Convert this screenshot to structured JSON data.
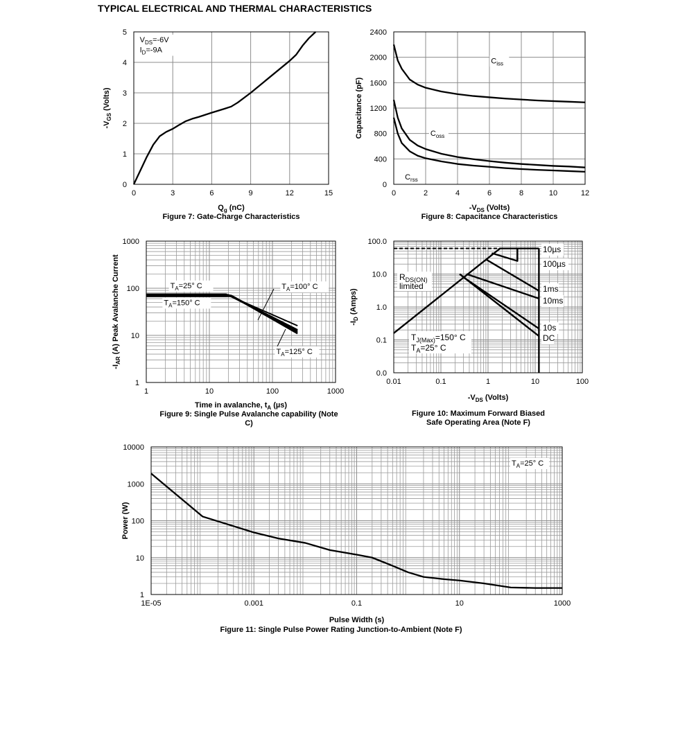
{
  "page": {
    "title": "TYPICAL ELECTRICAL AND THERMAL CHARACTERISTICS"
  },
  "chart_data": [
    {
      "id": "fig7",
      "type": "line",
      "title": "Figure 7: Gate-Charge Characteristics",
      "xlabel": {
        "main": "Q",
        "sub": "g",
        "after": " (nC)"
      },
      "ylabel": {
        "main": "-V",
        "sub": "GS",
        "after": " (Volts)"
      },
      "xlim": [
        0,
        15
      ],
      "ylim": [
        0,
        5
      ],
      "xticks": [
        0,
        3,
        6,
        9,
        12,
        15
      ],
      "yticks": [
        0,
        1,
        2,
        3,
        4,
        5
      ],
      "grid": true,
      "annotations": [
        {
          "main": "V",
          "sub": "DS",
          "after": "=-6V",
          "x": 0.3,
          "y": 4.75
        },
        {
          "main": "I",
          "sub": "D",
          "after": "=-9A",
          "x": 0.3,
          "y": 4.42
        }
      ],
      "series": [
        {
          "x": [
            0,
            0.5,
            1,
            1.5,
            2,
            2.5,
            3,
            3.5,
            4,
            4.5,
            5,
            6,
            7,
            7.5,
            8,
            9,
            10,
            11,
            12,
            12.5,
            13,
            13.5,
            14
          ],
          "y": [
            0,
            0.45,
            0.9,
            1.3,
            1.58,
            1.72,
            1.82,
            1.95,
            2.07,
            2.15,
            2.21,
            2.35,
            2.48,
            2.55,
            2.68,
            3.0,
            3.35,
            3.7,
            4.05,
            4.25,
            4.55,
            4.8,
            5.0
          ]
        }
      ]
    },
    {
      "id": "fig8",
      "type": "line",
      "title": "Figure 8: Capacitance Characteristics",
      "xlabel": {
        "main": "-V",
        "sub": "DS",
        "after": " (Volts)"
      },
      "ylabel": {
        "main": "Capacitance (pF)",
        "sub": "",
        "after": ""
      },
      "xlim": [
        0,
        12
      ],
      "ylim": [
        0,
        2400
      ],
      "xticks": [
        0,
        2,
        4,
        6,
        8,
        10,
        12
      ],
      "yticks": [
        0,
        400,
        800,
        1200,
        1600,
        2000,
        2400
      ],
      "grid": true,
      "series": [
        {
          "name": {
            "main": "C",
            "sub": "iss"
          },
          "label_at": [
            6.1,
            1950
          ],
          "x": [
            0,
            0.25,
            0.5,
            1,
            1.5,
            2,
            3,
            4,
            5,
            6,
            7,
            8,
            9,
            10,
            11,
            12
          ],
          "y": [
            2200,
            1950,
            1820,
            1650,
            1570,
            1520,
            1460,
            1420,
            1390,
            1370,
            1350,
            1335,
            1320,
            1310,
            1300,
            1290
          ]
        },
        {
          "name": {
            "main": "C",
            "sub": "oss"
          },
          "label_at": [
            2.3,
            810
          ],
          "x": [
            0,
            0.25,
            0.5,
            1,
            1.5,
            2,
            3,
            4,
            5,
            6,
            7,
            8,
            9,
            10,
            11,
            12
          ],
          "y": [
            1330,
            1050,
            880,
            700,
            610,
            555,
            480,
            430,
            395,
            365,
            340,
            320,
            305,
            290,
            280,
            265
          ]
        },
        {
          "name": {
            "main": "C",
            "sub": "rss"
          },
          "label_at": [
            0.7,
            120
          ],
          "x": [
            0,
            0.25,
            0.5,
            1,
            1.5,
            2,
            3,
            4,
            5,
            6,
            7,
            8,
            9,
            10,
            11,
            12
          ],
          "y": [
            1050,
            800,
            650,
            520,
            450,
            410,
            360,
            320,
            295,
            275,
            255,
            240,
            228,
            218,
            208,
            198
          ]
        }
      ]
    },
    {
      "id": "fig9",
      "type": "line",
      "title": "Figure 9: Single Pulse Avalanche capability      (Note C)",
      "xlabel": {
        "main": "Time in avalanche, t",
        "sub": "A",
        "after": " (µs)"
      },
      "ylabel": {
        "main": "-I",
        "sub": "AR",
        "after": " (A) Peak Avalanche Current"
      },
      "xscale": "log",
      "yscale": "log",
      "xlim": [
        1,
        1000
      ],
      "ylim": [
        1,
        1000
      ],
      "xticks": [
        1,
        10,
        100,
        1000
      ],
      "yticks": [
        1,
        10,
        100,
        1000
      ],
      "grid": true,
      "labels": [
        {
          "main": "T",
          "sub": "A",
          "after": "=25° C",
          "x": 2.4,
          "y": 115
        },
        {
          "main": "T",
          "sub": "A",
          "after": "=150° C",
          "x": 1.9,
          "y": 50
        },
        {
          "main": "T",
          "sub": "A",
          "after": "=100° C",
          "x": 140,
          "y": 110
        },
        {
          "main": "T",
          "sub": "A",
          "after": "=125° C",
          "x": 115,
          "y": 4.6
        }
      ],
      "series": [
        {
          "name": "TA=25° C",
          "x": [
            1,
            18,
            250
          ],
          "y": [
            75,
            75,
            16
          ]
        },
        {
          "name": "TA=100° C",
          "x": [
            1,
            20,
            250
          ],
          "y": [
            72,
            72,
            13
          ]
        },
        {
          "name": "TA=125° C",
          "x": [
            1,
            22,
            250
          ],
          "y": [
            70,
            70,
            12
          ]
        },
        {
          "name": "TA=150° C",
          "x": [
            1,
            23,
            250
          ],
          "y": [
            68,
            68,
            11
          ]
        }
      ]
    },
    {
      "id": "fig10",
      "type": "line",
      "title": "Figure 10: Maximum Forward Biased Safe Operating Area (Note F)",
      "xlabel": {
        "main": "-V",
        "sub": "DS",
        "after": " (Volts)"
      },
      "ylabel": {
        "main": "-I",
        "sub": "D",
        "after": " (Amps)"
      },
      "xscale": "log",
      "yscale": "log",
      "xlim": [
        0.01,
        100
      ],
      "ylim": [
        0.01,
        100
      ],
      "xticks": [
        0.01,
        0.1,
        1,
        10,
        100
      ],
      "xtick_labels": [
        "0.01",
        "0.1",
        "1",
        "10",
        "100"
      ],
      "yticks": [
        0.01,
        0.1,
        1,
        10,
        100
      ],
      "ytick_labels": [
        "0.0",
        "0.1",
        "1.0",
        "10.0",
        "100.0"
      ],
      "grid": true,
      "limit_line_y": 60,
      "rds_label": {
        "main": "R",
        "sub": "DS(ON)",
        "line2": "limited"
      },
      "tj_label": {
        "main": "T",
        "sub": "J(Max)",
        "after": "=150° C"
      },
      "ta_label": {
        "main": "T",
        "sub": "A",
        "after": "=25° C"
      },
      "series": [
        {
          "name": "10µs",
          "x": [
            0.01,
            1.8,
            4.2,
            12
          ],
          "y": [
            0.16,
            60,
            60,
            60
          ]
        },
        {
          "name": "100µs",
          "x": [
            1.2,
            4.2,
            4.2
          ],
          "y": [
            43,
            25,
            60
          ]
        },
        {
          "name": "1ms",
          "x": [
            0.9,
            12
          ],
          "y": [
            28,
            3.1
          ]
        },
        {
          "name": "10ms",
          "x": [
            0.35,
            12
          ],
          "y": [
            10,
            1.8
          ]
        },
        {
          "name": "10s",
          "x": [
            0.3,
            12
          ],
          "y": [
            8,
            0.22
          ]
        },
        {
          "name": "DC",
          "x": [
            0.25,
            12
          ],
          "y": [
            10,
            0.13
          ]
        },
        {
          "name": "",
          "x": [
            12,
            12
          ],
          "y": [
            0.01,
            60
          ]
        }
      ]
    },
    {
      "id": "fig11",
      "type": "line",
      "title": "Figure 11: Single Pulse Power Rating Junction-to-Ambient (Note F)",
      "xlabel": "Pulse Width (s)",
      "ylabel": "Power (W)",
      "xscale": "log",
      "yscale": "log",
      "xlim": [
        1e-05,
        1000
      ],
      "ylim": [
        1,
        10000
      ],
      "xticks": [
        1e-05,
        0.001,
        0.1,
        10,
        1000
      ],
      "xtick_labels": [
        "1E-05",
        "0.001",
        "0.1",
        "10",
        "1000"
      ],
      "yticks": [
        1,
        10,
        100,
        1000,
        10000
      ],
      "grid": true,
      "annotation": {
        "main": "T",
        "sub": "A",
        "after": "=25° C"
      },
      "series": [
        {
          "x": [
            1e-05,
            0.0001,
            0.001,
            0.003,
            0.01,
            0.03,
            0.1,
            0.2,
            0.5,
            1,
            2,
            5,
            10,
            30,
            100,
            300,
            1000
          ],
          "y": [
            1900,
            130,
            48,
            33,
            25,
            16,
            12,
            10,
            6,
            4,
            3,
            2.6,
            2.4,
            2.0,
            1.55,
            1.5,
            1.5
          ]
        }
      ]
    }
  ]
}
